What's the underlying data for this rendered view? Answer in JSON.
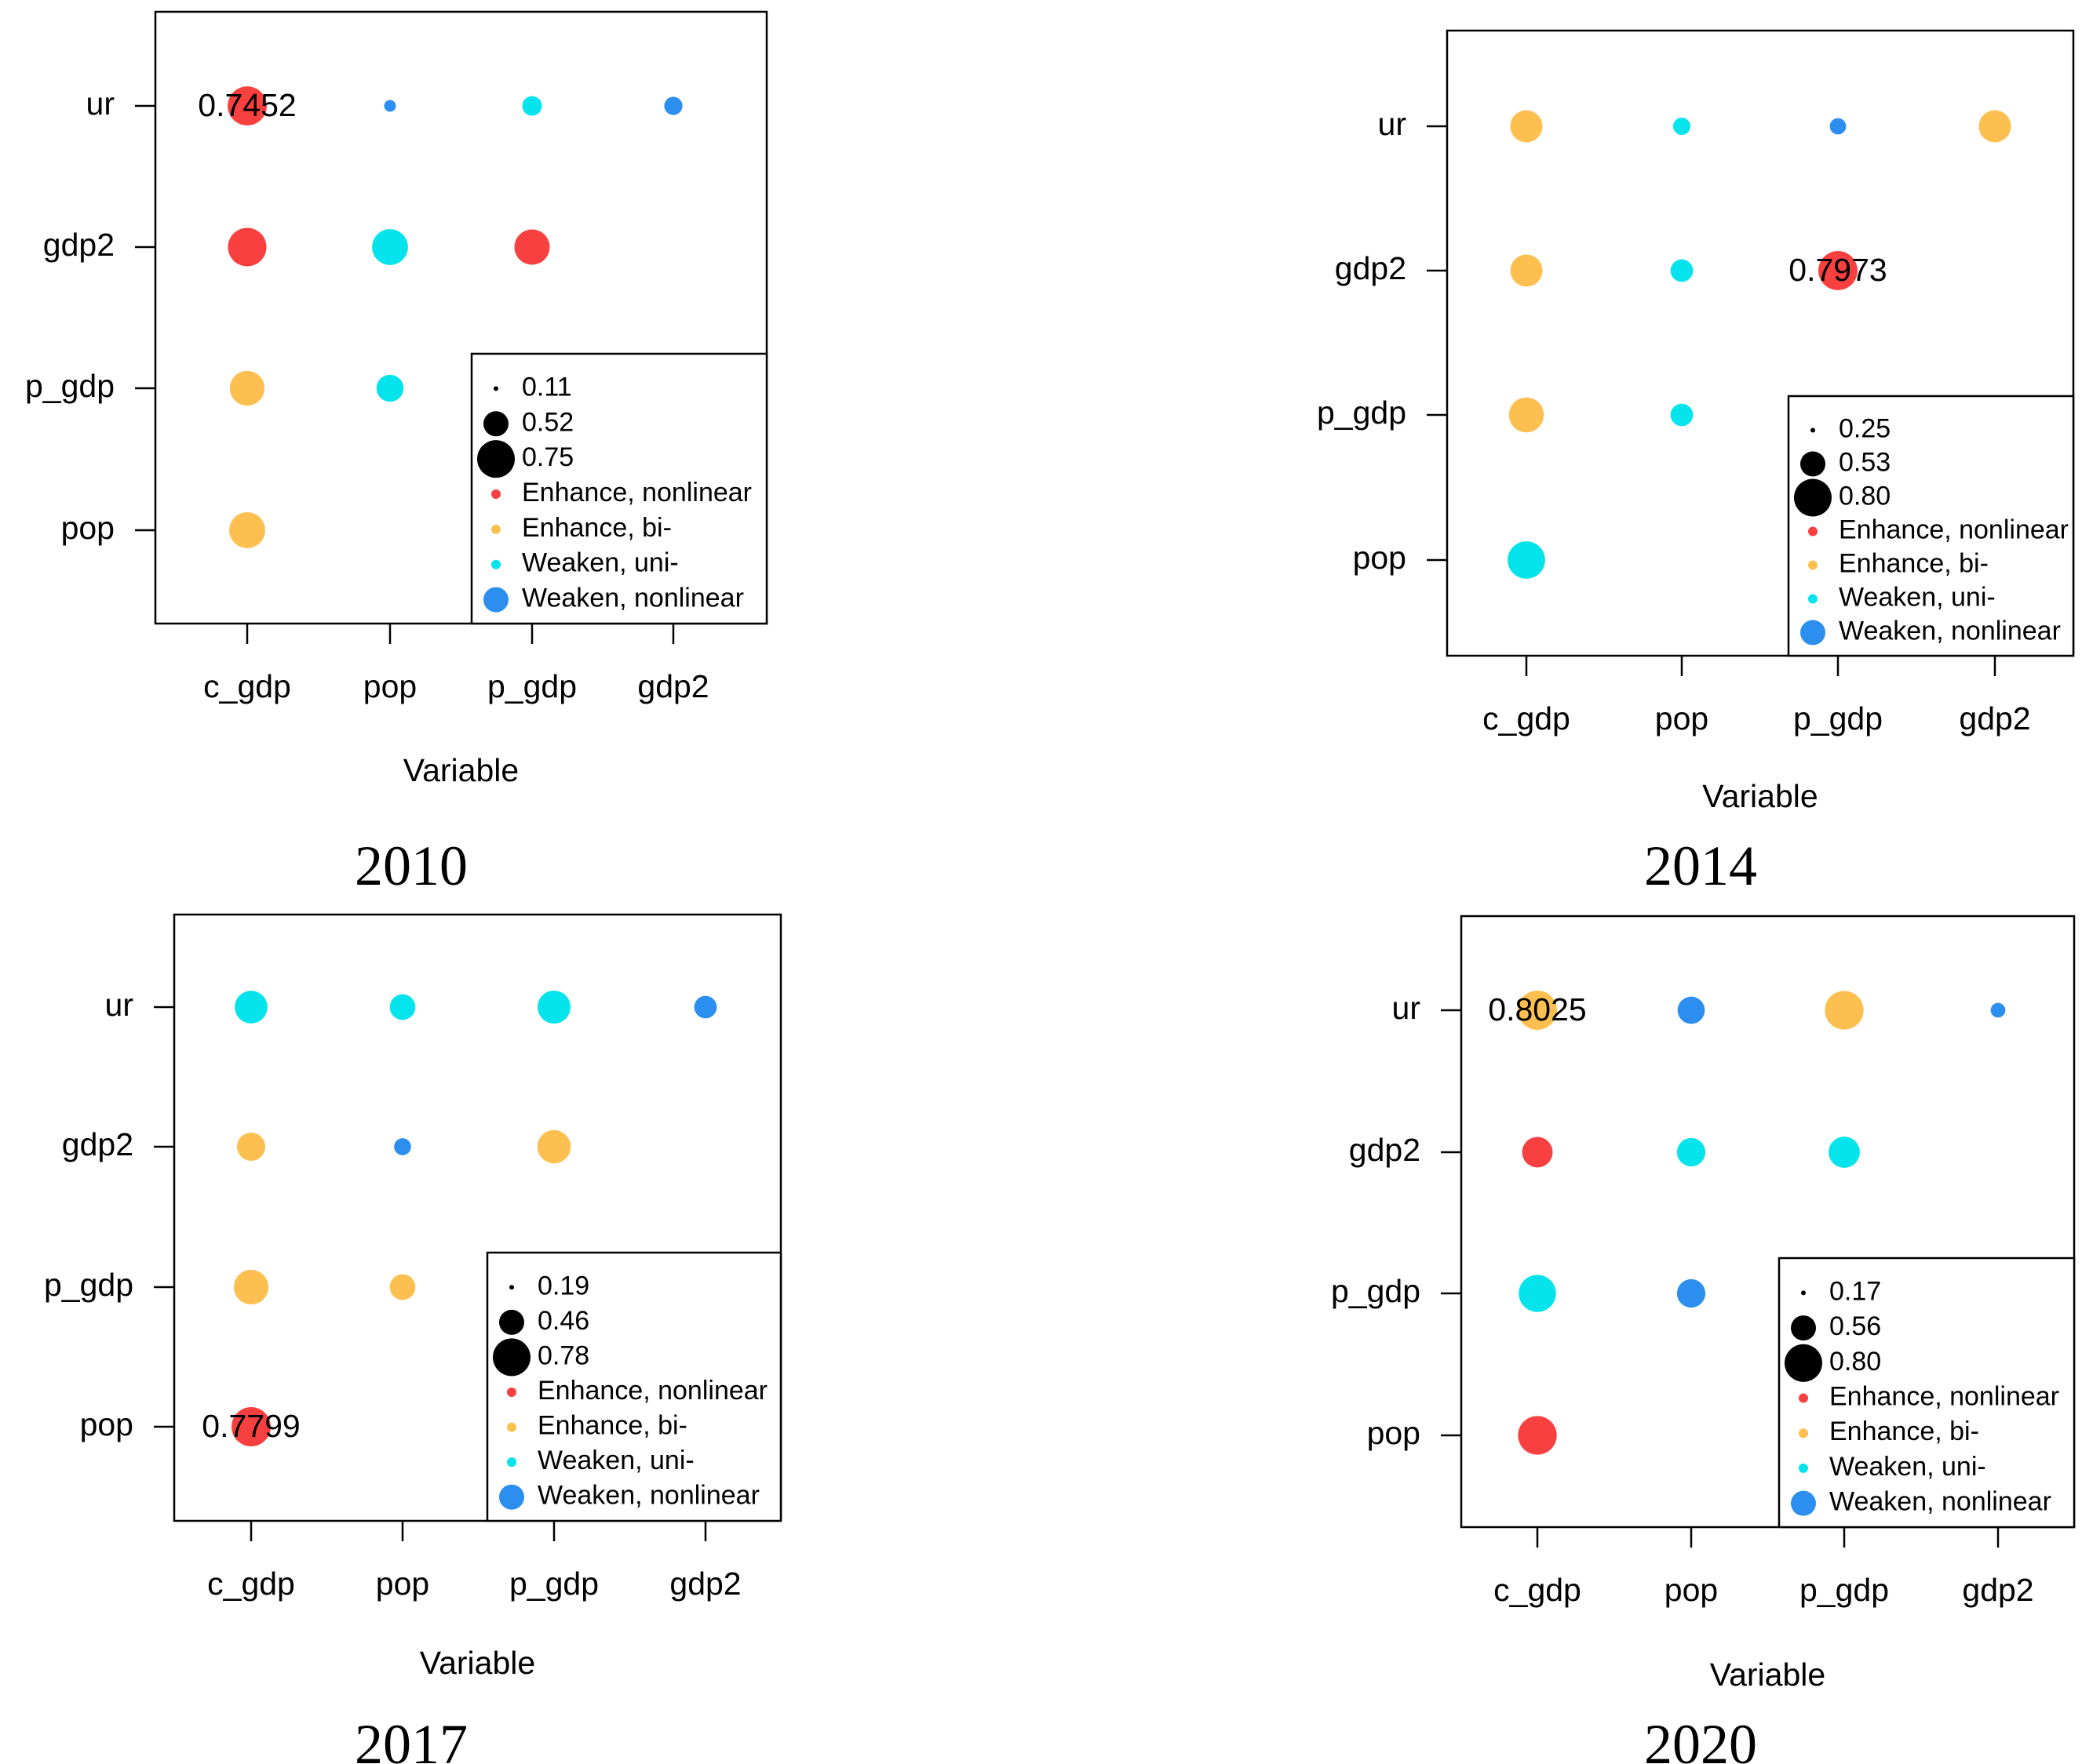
{
  "chart_data": [
    {
      "type": "scatter",
      "title": "2010",
      "xlabel": "Variable",
      "x_categories": [
        "c_gdp",
        "pop",
        "p_gdp",
        "gdp2"
      ],
      "y_categories": [
        "ur",
        "gdp2",
        "p_gdp",
        "pop"
      ],
      "size_legend": [
        "0.11",
        "0.52",
        "0.75"
      ],
      "size_range": [
        0.11,
        0.75
      ],
      "type_legend": [
        "Enhance, nonlinear",
        "Enhance, bi-",
        "Weaken, uni-",
        "Weaken, nonlinear"
      ],
      "points": [
        {
          "x": "c_gdp",
          "y": "ur",
          "value": 0.7452,
          "kind": "Enhance, nonlinear",
          "label": "0.7452"
        },
        {
          "x": "pop",
          "y": "ur",
          "value": 0.12,
          "kind": "Weaken, nonlinear"
        },
        {
          "x": "p_gdp",
          "y": "ur",
          "value": 0.2,
          "kind": "Weaken, uni-"
        },
        {
          "x": "gdp2",
          "y": "ur",
          "value": 0.18,
          "kind": "Weaken, nonlinear"
        },
        {
          "x": "c_gdp",
          "y": "gdp2",
          "value": 0.72,
          "kind": "Enhance, nonlinear"
        },
        {
          "x": "pop",
          "y": "gdp2",
          "value": 0.62,
          "kind": "Weaken, uni-"
        },
        {
          "x": "p_gdp",
          "y": "gdp2",
          "value": 0.6,
          "kind": "Enhance, nonlinear"
        },
        {
          "x": "c_gdp",
          "y": "p_gdp",
          "value": 0.58,
          "kind": "Enhance, bi-"
        },
        {
          "x": "pop",
          "y": "p_gdp",
          "value": 0.35,
          "kind": "Weaken, uni-"
        },
        {
          "x": "c_gdp",
          "y": "pop",
          "value": 0.62,
          "kind": "Enhance, bi-"
        }
      ]
    },
    {
      "type": "scatter",
      "title": "2014",
      "xlabel": "Variable",
      "x_categories": [
        "c_gdp",
        "pop",
        "p_gdp",
        "gdp2"
      ],
      "y_categories": [
        "ur",
        "gdp2",
        "p_gdp",
        "pop"
      ],
      "size_legend": [
        "0.25",
        "0.53",
        "0.80"
      ],
      "size_range": [
        0.25,
        0.8
      ],
      "type_legend": [
        "Enhance, nonlinear",
        "Enhance, bi-",
        "Weaken, uni-",
        "Weaken, nonlinear"
      ],
      "points": [
        {
          "x": "c_gdp",
          "y": "ur",
          "value": 0.58,
          "kind": "Enhance, bi-"
        },
        {
          "x": "pop",
          "y": "ur",
          "value": 0.3,
          "kind": "Weaken, uni-"
        },
        {
          "x": "p_gdp",
          "y": "ur",
          "value": 0.29,
          "kind": "Weaken, nonlinear"
        },
        {
          "x": "gdp2",
          "y": "ur",
          "value": 0.58,
          "kind": "Enhance, bi-"
        },
        {
          "x": "c_gdp",
          "y": "gdp2",
          "value": 0.58,
          "kind": "Enhance, bi-"
        },
        {
          "x": "pop",
          "y": "gdp2",
          "value": 0.37,
          "kind": "Weaken, uni-"
        },
        {
          "x": "p_gdp",
          "y": "gdp2",
          "value": 0.7973,
          "kind": "Enhance, nonlinear",
          "label": "0.7973"
        },
        {
          "x": "c_gdp",
          "y": "p_gdp",
          "value": 0.66,
          "kind": "Enhance, bi-"
        },
        {
          "x": "pop",
          "y": "p_gdp",
          "value": 0.37,
          "kind": "Weaken, uni-"
        },
        {
          "x": "c_gdp",
          "y": "pop",
          "value": 0.74,
          "kind": "Weaken, uni-"
        }
      ]
    },
    {
      "type": "scatter",
      "title": "2017",
      "xlabel": "Variable",
      "x_categories": [
        "c_gdp",
        "pop",
        "p_gdp",
        "gdp2"
      ],
      "y_categories": [
        "ur",
        "gdp2",
        "p_gdp",
        "pop"
      ],
      "size_legend": [
        "0.19",
        "0.46",
        "0.78"
      ],
      "size_range": [
        0.19,
        0.78
      ],
      "type_legend": [
        "Enhance, nonlinear",
        "Enhance, bi-",
        "Weaken, uni-",
        "Weaken, nonlinear"
      ],
      "points": [
        {
          "x": "c_gdp",
          "y": "ur",
          "value": 0.56,
          "kind": "Weaken, uni-"
        },
        {
          "x": "pop",
          "y": "ur",
          "value": 0.38,
          "kind": "Weaken, uni-"
        },
        {
          "x": "p_gdp",
          "y": "ur",
          "value": 0.57,
          "kind": "Weaken, uni-"
        },
        {
          "x": "gdp2",
          "y": "ur",
          "value": 0.32,
          "kind": "Weaken, nonlinear"
        },
        {
          "x": "c_gdp",
          "y": "gdp2",
          "value": 0.44,
          "kind": "Enhance, bi-"
        },
        {
          "x": "pop",
          "y": "gdp2",
          "value": 0.24,
          "kind": "Weaken, nonlinear"
        },
        {
          "x": "p_gdp",
          "y": "gdp2",
          "value": 0.58,
          "kind": "Enhance, bi-"
        },
        {
          "x": "c_gdp",
          "y": "p_gdp",
          "value": 0.62,
          "kind": "Enhance, bi-"
        },
        {
          "x": "pop",
          "y": "p_gdp",
          "value": 0.38,
          "kind": "Enhance, bi-"
        },
        {
          "x": "c_gdp",
          "y": "pop",
          "value": 0.7799,
          "kind": "Enhance, nonlinear",
          "label": "0.7799"
        }
      ]
    },
    {
      "type": "scatter",
      "title": "2020",
      "xlabel": "Variable",
      "x_categories": [
        "c_gdp",
        "pop",
        "p_gdp",
        "gdp2"
      ],
      "y_categories": [
        "ur",
        "gdp2",
        "p_gdp",
        "pop"
      ],
      "size_legend": [
        "0.17",
        "0.56",
        "0.80"
      ],
      "size_range": [
        0.17,
        0.8
      ],
      "type_legend": [
        "Enhance, nonlinear",
        "Enhance, bi-",
        "Weaken, uni-",
        "Weaken, nonlinear"
      ],
      "points": [
        {
          "x": "c_gdp",
          "y": "ur",
          "value": 0.8025,
          "kind": "Enhance, bi-",
          "label": "0.8025"
        },
        {
          "x": "pop",
          "y": "ur",
          "value": 0.41,
          "kind": "Weaken, nonlinear"
        },
        {
          "x": "p_gdp",
          "y": "ur",
          "value": 0.78,
          "kind": "Enhance, bi-"
        },
        {
          "x": "gdp2",
          "y": "ur",
          "value": 0.2,
          "kind": "Weaken, nonlinear"
        },
        {
          "x": "c_gdp",
          "y": "gdp2",
          "value": 0.5,
          "kind": "Enhance, nonlinear"
        },
        {
          "x": "pop",
          "y": "gdp2",
          "value": 0.44,
          "kind": "Weaken, uni-"
        },
        {
          "x": "p_gdp",
          "y": "gdp2",
          "value": 0.52,
          "kind": "Weaken, uni-"
        },
        {
          "x": "c_gdp",
          "y": "p_gdp",
          "value": 0.72,
          "kind": "Weaken, uni-"
        },
        {
          "x": "pop",
          "y": "p_gdp",
          "value": 0.44,
          "kind": "Weaken, nonlinear"
        },
        {
          "x": "c_gdp",
          "y": "pop",
          "value": 0.78,
          "kind": "Enhance, nonlinear"
        }
      ]
    }
  ],
  "colors": {
    "Enhance, nonlinear": "#F94040",
    "Enhance, bi-": "#FDBF4F",
    "Weaken, uni-": "#05E4EC",
    "Weaken, nonlinear": "#2C8FEF"
  }
}
